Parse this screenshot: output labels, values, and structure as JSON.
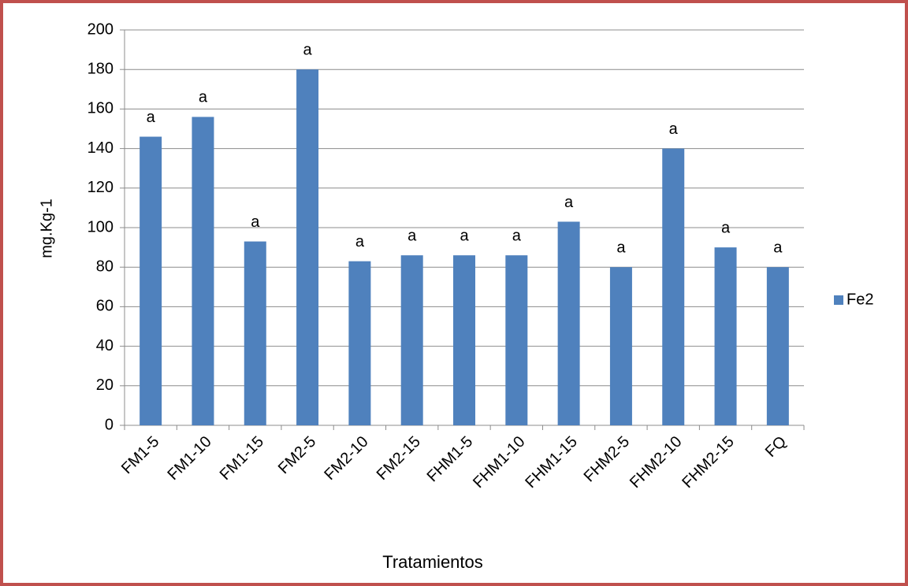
{
  "chart_data": {
    "type": "bar",
    "categories": [
      "FM1-5",
      "FM1-10",
      "FM1-15",
      "FM2-5",
      "FM2-10",
      "FM2-15",
      "FHM1-5",
      "FHM1-10",
      "FHM1-15",
      "FHM2-5",
      "FHM2-10",
      "FHM2-15",
      "FQ"
    ],
    "series": [
      {
        "name": "Fe2",
        "color": "#4f81bd",
        "values": [
          146,
          156,
          93,
          180,
          83,
          86,
          86,
          86,
          103,
          80,
          140,
          90,
          80
        ]
      }
    ],
    "annotations": [
      "a",
      "a",
      "a",
      "a",
      "a",
      "a",
      "a",
      "a",
      "a",
      "a",
      "a",
      "a",
      "a"
    ],
    "y_label": "mg.Kg-1",
    "x_label": "Tratamientos",
    "ylim": [
      0,
      200
    ],
    "yticks": [
      0,
      20,
      40,
      60,
      80,
      100,
      120,
      140,
      160,
      180,
      200
    ],
    "grid": true,
    "legend": "right"
  }
}
